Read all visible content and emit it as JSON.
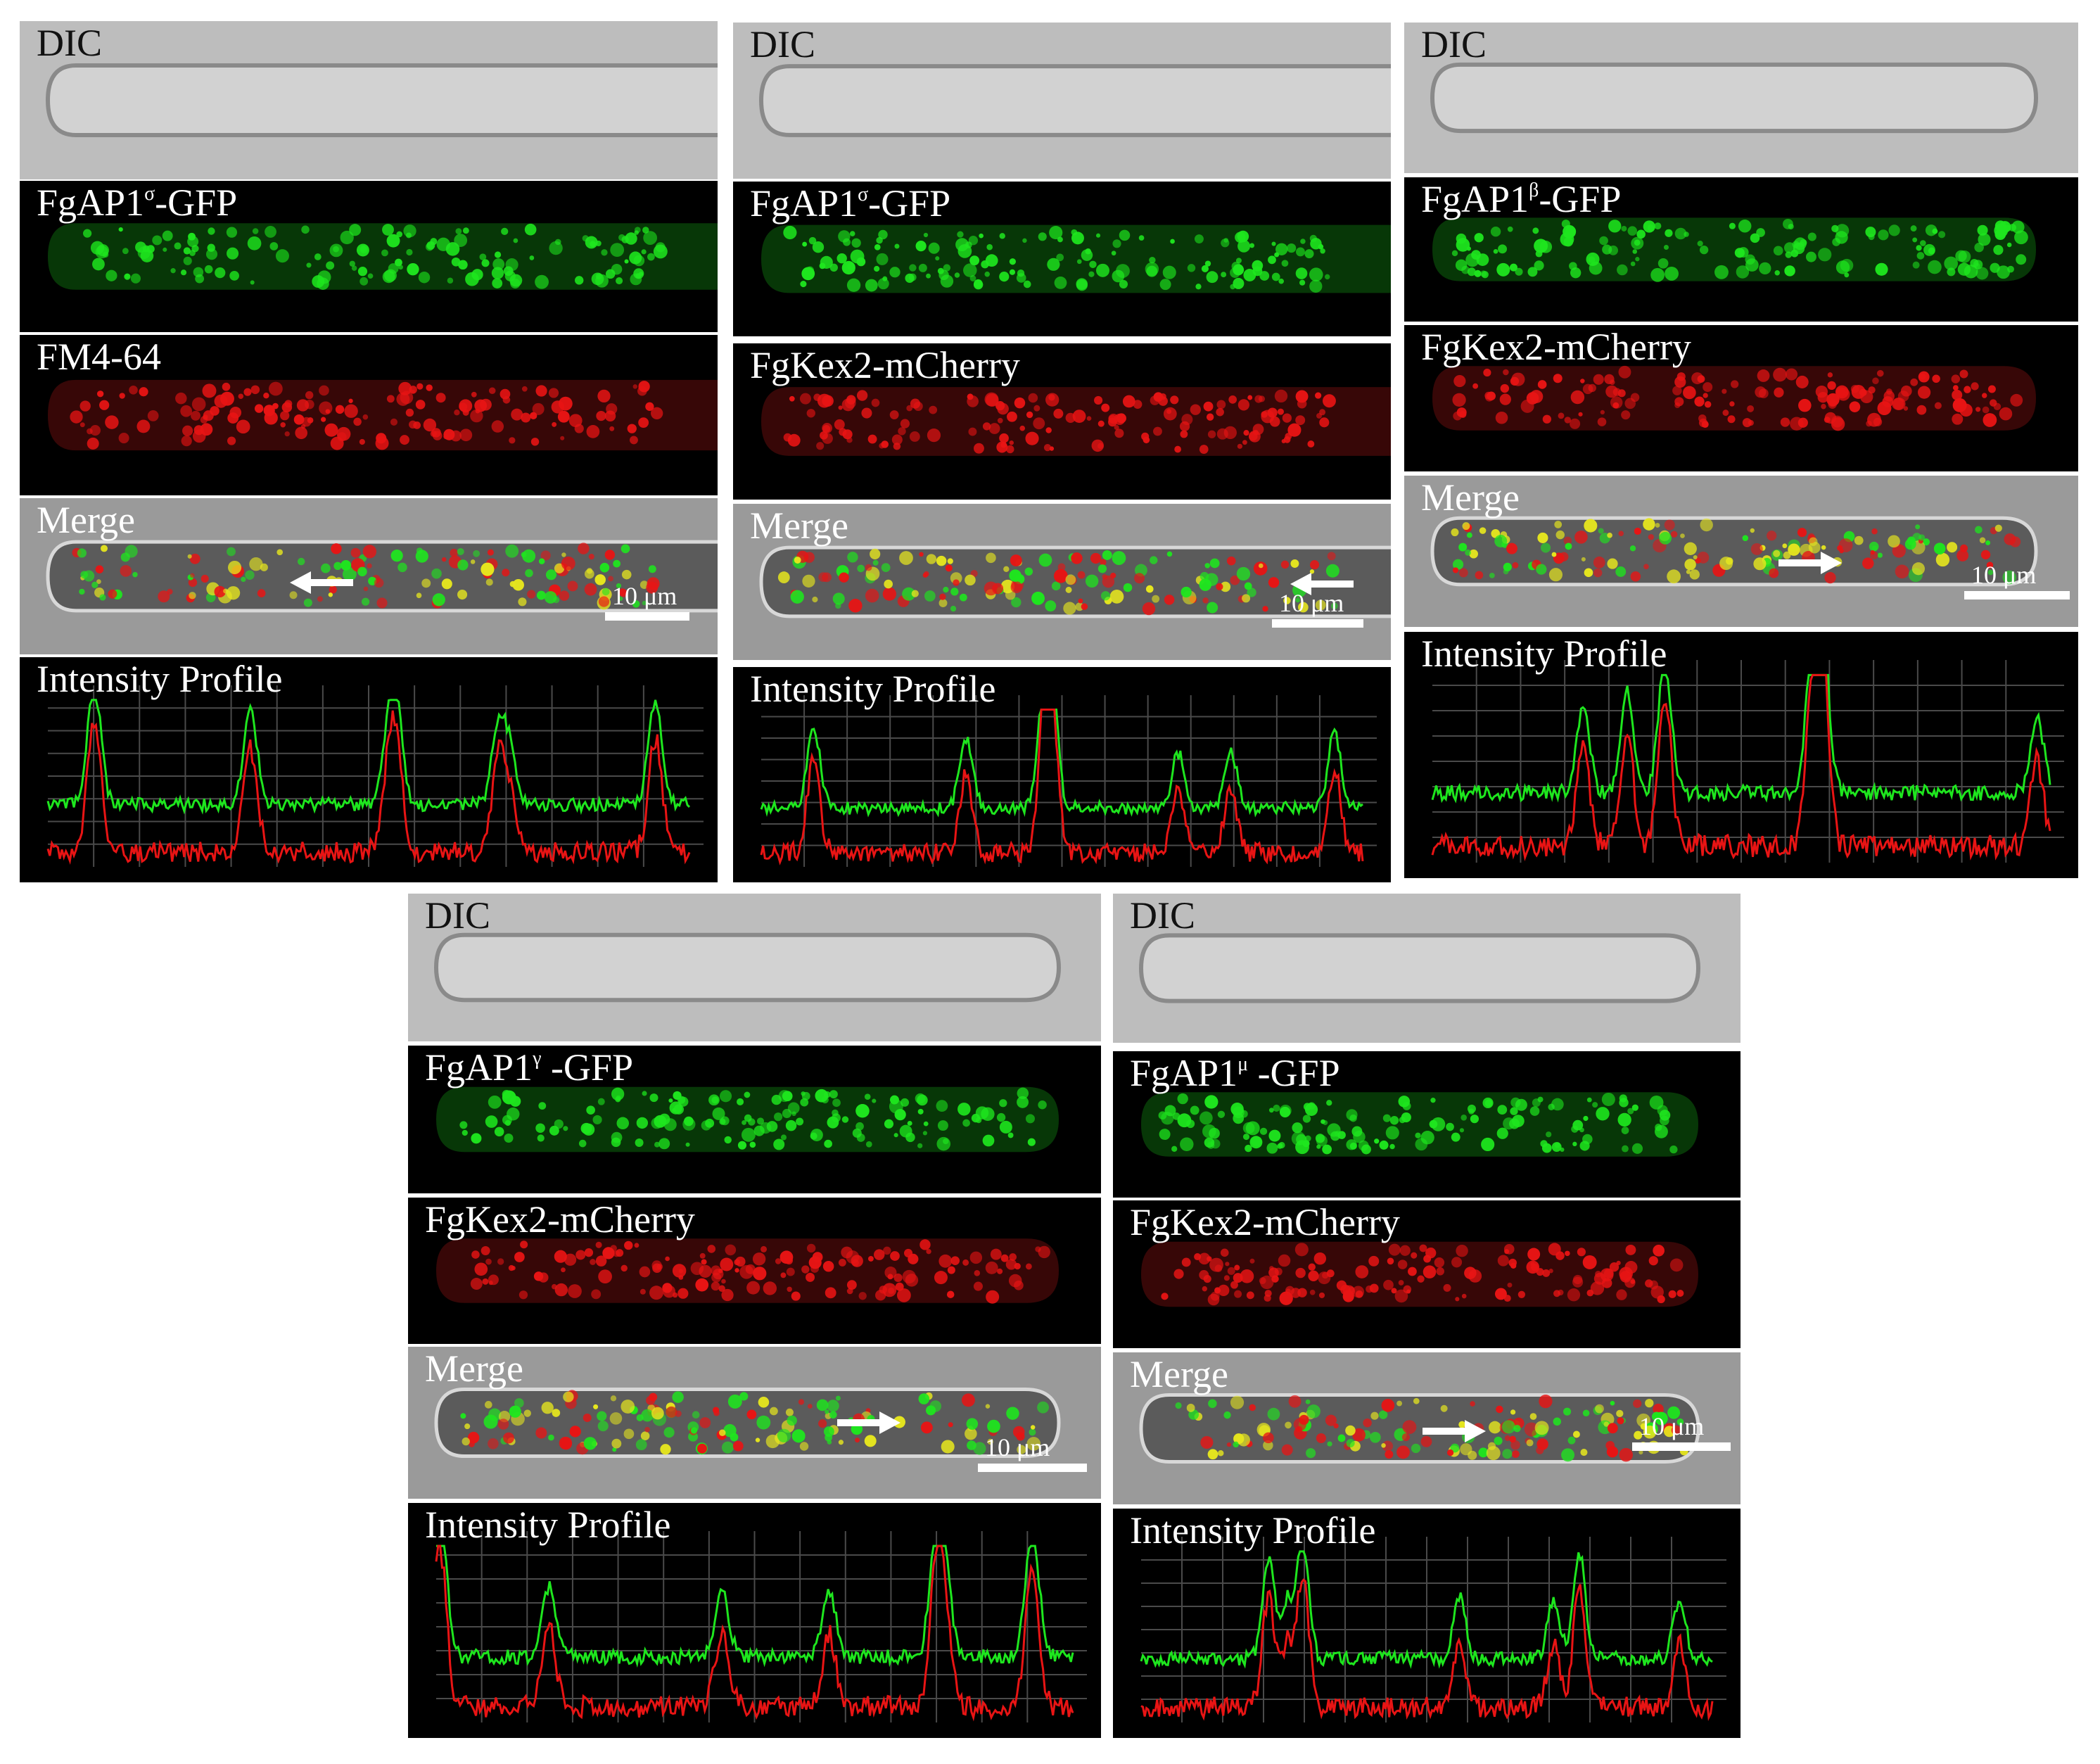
{
  "columns": [
    {
      "id": "c1",
      "dic_label": "DIC",
      "gfp_label": "FgAP1",
      "gfp_sup": "σ",
      "gfp_suffix": "-GFP",
      "red_label": "FM4-64",
      "merge_label": "Merge",
      "scale_text": "10 μm",
      "profile_label": "Intensity Profile"
    },
    {
      "id": "c2",
      "dic_label": "DIC",
      "gfp_label": "FgAP1",
      "gfp_sup": "σ",
      "gfp_suffix": "-GFP",
      "red_label": "FgKex2-mCherry",
      "merge_label": "Merge",
      "scale_text": "10 μm",
      "profile_label": "Intensity Profile"
    },
    {
      "id": "c3",
      "dic_label": "DIC",
      "gfp_label": "FgAP1",
      "gfp_sup": "β",
      "gfp_suffix": "-GFP",
      "red_label": "FgKex2-mCherry",
      "merge_label": "Merge",
      "scale_text": "10 μm",
      "profile_label": "Intensity Profile"
    },
    {
      "id": "c4",
      "dic_label": "DIC",
      "gfp_label": "FgAP1",
      "gfp_sup": "γ",
      "gfp_suffix": " -GFP",
      "red_label": "FgKex2-mCherry",
      "merge_label": "Merge",
      "scale_text": "10 μm",
      "profile_label": "Intensity Profile"
    },
    {
      "id": "c5",
      "dic_label": "DIC",
      "gfp_label": "FgAP1",
      "gfp_sup": "μ",
      "gfp_suffix": " -GFP",
      "red_label": "FgKex2-mCherry",
      "merge_label": "Merge",
      "scale_text": "10 μm",
      "profile_label": "Intensity Profile"
    }
  ],
  "colors": {
    "dic_background": "#bdbdbd",
    "hypha_dic": "#d2d2d2",
    "gfp_channel": "#1ee61e",
    "red_channel": "#e81414",
    "plot_grid": "#4a4a4a",
    "arrow": "#ffffff"
  }
}
